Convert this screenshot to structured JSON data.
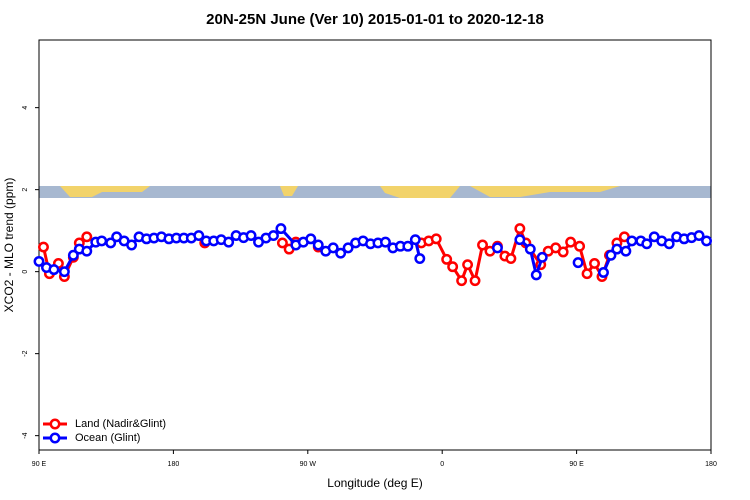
{
  "chart_data": {
    "type": "line",
    "title": "20N-25N June (Ver 10)   2015-01-01 to 2020-12-18",
    "x_label": "Longitude (deg E)",
    "y_label": "XCO2 - MLO trend (ppm)",
    "xlim": [
      90,
      540
    ],
    "xticks": [
      {
        "value": 90,
        "label": "90 E"
      },
      {
        "value": 180,
        "label": "180"
      },
      {
        "value": 270,
        "label": "90 W"
      },
      {
        "value": 360,
        "label": "0"
      },
      {
        "value": 450,
        "label": "90 E"
      },
      {
        "value": 540,
        "label": "180"
      }
    ],
    "ylim": [
      -4.35,
      5.65
    ],
    "yticks": [
      -4,
      -2,
      0,
      2,
      4
    ],
    "legend": "bottom-left",
    "series": [
      {
        "name": "Land (Nadir&Glint)",
        "color": "#ff0000",
        "x": [
          93,
          97,
          103,
          107,
          113,
          117,
          122,
          125,
          201,
          205,
          253,
          257.5,
          262,
          265,
          277,
          280,
          346,
          351,
          356,
          363,
          367,
          373,
          377,
          382,
          387,
          392,
          397,
          402,
          406,
          412,
          416,
          426,
          431,
          436,
          441,
          446,
          452,
          457,
          462,
          467,
          472,
          477,
          482
        ],
        "values": [
          0.6,
          -0.05,
          0.2,
          -0.12,
          0.35,
          0.7,
          0.85,
          null,
          0.7,
          null,
          0.7,
          0.55,
          0.72,
          null,
          0.6,
          null,
          0.7,
          0.75,
          0.8,
          0.3,
          0.12,
          -0.22,
          0.17,
          -0.22,
          0.65,
          0.5,
          0.62,
          0.38,
          0.32,
          1.05,
          0.7,
          0.17,
          0.5,
          0.58,
          0.48,
          0.72,
          0.62,
          -0.05,
          0.2,
          -0.12,
          0.4,
          0.7,
          0.85
        ]
      },
      {
        "name": "Ocean (Glint)",
        "color": "#0000ff",
        "x": [
          90,
          95,
          100,
          107,
          113,
          117,
          122,
          128,
          132,
          138,
          142,
          147,
          152,
          157,
          162,
          167,
          172,
          177,
          182,
          187,
          192,
          197,
          202,
          207,
          212,
          217,
          222,
          227,
          232,
          237,
          242,
          247,
          252,
          262,
          267,
          272,
          277,
          282,
          287,
          292,
          297,
          302,
          307,
          312,
          317,
          322,
          327,
          332,
          337,
          342,
          345,
          350,
          397,
          400,
          412,
          419,
          423,
          427,
          440,
          451,
          460,
          468,
          473,
          477,
          483,
          487,
          493,
          497,
          502,
          507,
          512,
          517,
          522,
          527,
          532,
          537
        ],
        "values": [
          0.25,
          0.1,
          0.05,
          0,
          0.4,
          0.55,
          0.5,
          0.72,
          0.75,
          0.7,
          0.85,
          0.75,
          0.65,
          0.85,
          0.8,
          0.82,
          0.85,
          0.8,
          0.82,
          0.82,
          0.82,
          0.88,
          0.75,
          0.75,
          0.78,
          0.72,
          0.88,
          0.83,
          0.88,
          0.72,
          0.82,
          0.88,
          1.05,
          0.65,
          0.72,
          0.8,
          0.65,
          0.5,
          0.58,
          0.45,
          0.58,
          0.7,
          0.75,
          0.68,
          0.7,
          0.72,
          0.58,
          0.62,
          0.62,
          0.78,
          0.32,
          null,
          0.58,
          null,
          0.78,
          0.55,
          -0.08,
          0.35,
          null,
          0.22,
          null,
          -0.02,
          0.4,
          0.55,
          0.5,
          0.75,
          0.75,
          0.68,
          0.85,
          0.75,
          0.68,
          0.85,
          0.8,
          0.83,
          0.88,
          0.75
        ]
      }
    ]
  }
}
